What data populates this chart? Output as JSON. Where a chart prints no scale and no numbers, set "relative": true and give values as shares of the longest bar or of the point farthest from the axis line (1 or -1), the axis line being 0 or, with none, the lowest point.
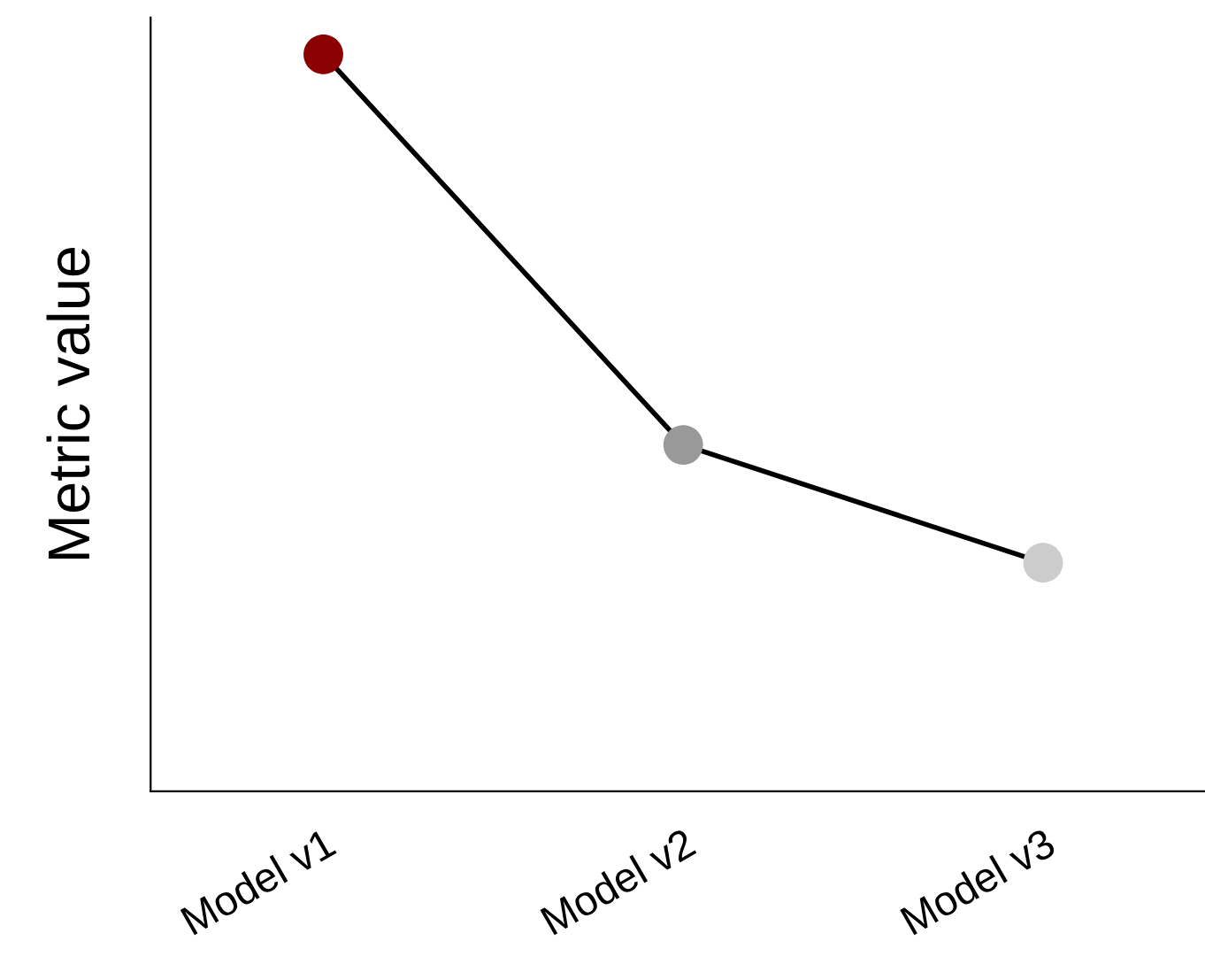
{
  "chart_data": {
    "type": "line",
    "ylabel": "Metric value",
    "relative": true,
    "categories": [
      "Model v1",
      "Model v2",
      "Model v3"
    ],
    "series": [
      {
        "color": "#000000",
        "colors": [
          "#8b0000",
          "#999999",
          "#cccccc"
        ],
        "values": [
          1,
          0.47,
          0.31
        ]
      }
    ],
    "marker": "circle",
    "line_style": "solid",
    "grid": false,
    "legend": false
  }
}
